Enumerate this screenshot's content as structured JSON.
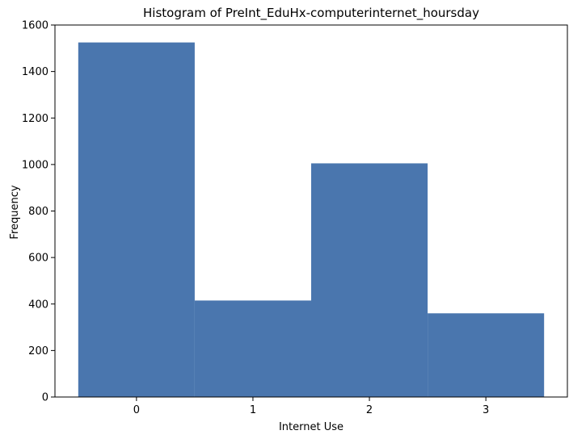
{
  "chart_data": {
    "type": "bar",
    "title": "Histogram of PreInt_EduHx-computerinternet_hoursday",
    "xlabel": "Internet Use",
    "ylabel": "Frequency",
    "categories": [
      "0",
      "1",
      "2",
      "3"
    ],
    "x": [
      0,
      1,
      2,
      3
    ],
    "values": [
      1525,
      415,
      1005,
      360
    ],
    "xlim": [
      -0.7,
      3.7
    ],
    "ylim": [
      0,
      1600
    ],
    "yticks": [
      0,
      200,
      400,
      600,
      800,
      1000,
      1200,
      1400,
      1600
    ],
    "xticks": [
      0,
      1,
      2,
      3
    ],
    "grid": false,
    "bar_color": "#4a76ae",
    "axes_color": "#000000"
  }
}
